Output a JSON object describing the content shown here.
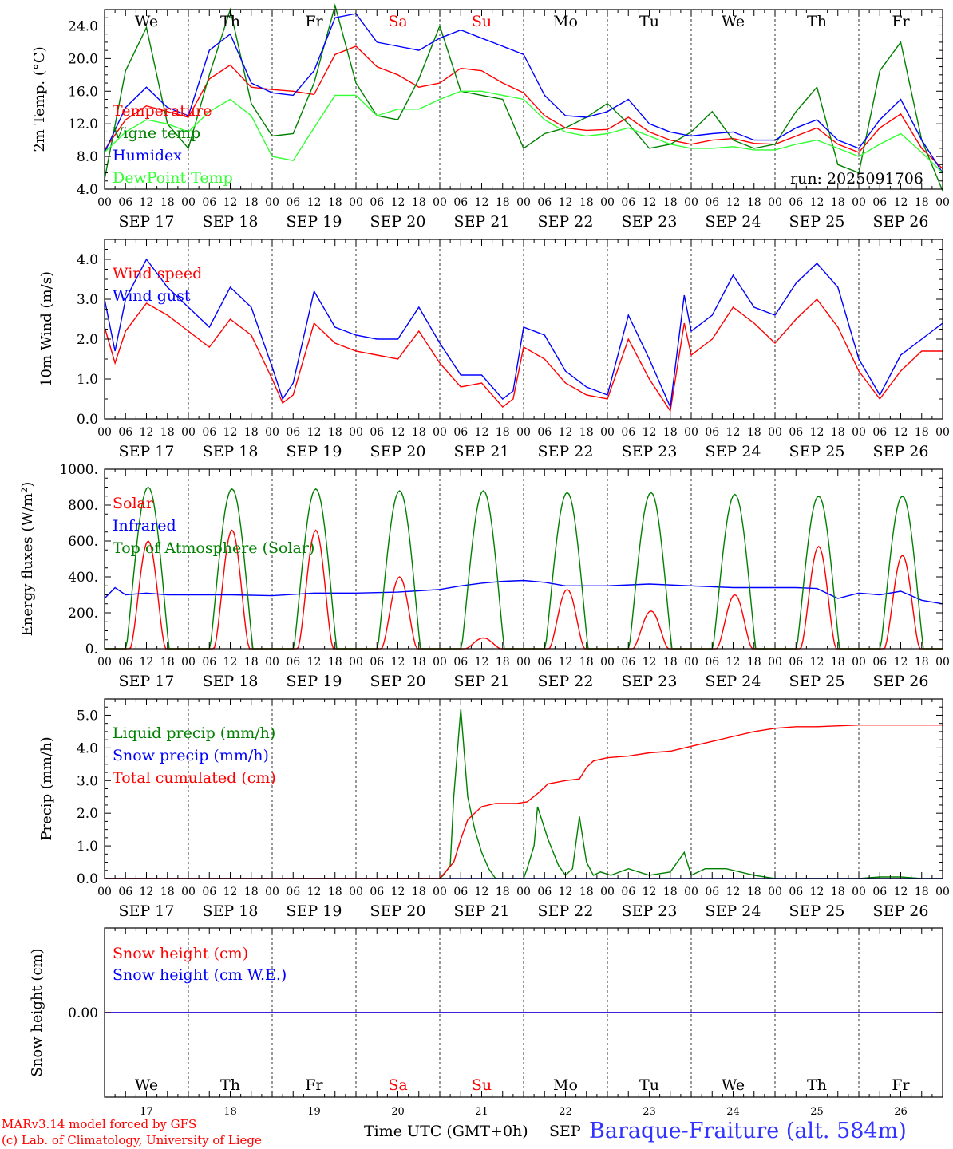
{
  "run_label": "run: 2025091706",
  "footer": {
    "model": "MARv3.14 model forced by GFS",
    "lab": "(c) Lab. of Climatology, University of Liege",
    "axis_title": "Time UTC (GMT+0h)",
    "month": "SEP",
    "station": "Baraque-Fraiture (alt. 584m)"
  },
  "colors": {
    "red": "#ff0000",
    "blue": "#0000ff",
    "dkgreen": "#008000",
    "ltgreen": "#33ff33"
  },
  "days": {
    "weekday_labels": [
      "We",
      "Th",
      "Fr",
      "Sa",
      "Su",
      "Mo",
      "Tu",
      "We",
      "Th",
      "Fr"
    ],
    "weekend": [
      false,
      false,
      false,
      true,
      true,
      false,
      false,
      false,
      false,
      false
    ],
    "date_labels": [
      "SEP 17",
      "SEP 18",
      "SEP 19",
      "SEP 20",
      "SEP 21",
      "SEP 22",
      "SEP 23",
      "SEP 24",
      "SEP 25",
      "SEP 26"
    ],
    "day_numbers": [
      "17",
      "18",
      "19",
      "20",
      "21",
      "22",
      "23",
      "24",
      "25",
      "26"
    ],
    "hour_ticks": [
      "00",
      "06",
      "12",
      "18"
    ],
    "final_tick": "00"
  },
  "chart_data": [
    {
      "type": "line",
      "ylabel": "2m Temp. (°C)",
      "ylim": [
        4.0,
        26.0
      ],
      "yticks": [
        "4.0",
        "8.0",
        "12.0",
        "16.0",
        "20.0",
        "24.0"
      ],
      "x_unit": "hours since Sep 17 00 UTC",
      "series": [
        {
          "name": "Temperature",
          "color": "#ff0000",
          "x": [
            0,
            6,
            12,
            18,
            24,
            30,
            36,
            42,
            48,
            54,
            60,
            66,
            72,
            78,
            84,
            90,
            96,
            102,
            108,
            114,
            120,
            126,
            132,
            138,
            144,
            150,
            156,
            162,
            168,
            174,
            180,
            186,
            192,
            198,
            204,
            210,
            216,
            222,
            228,
            234,
            240
          ],
          "y": [
            8.8,
            12.5,
            14.2,
            13.5,
            12.8,
            17.5,
            19.2,
            16.5,
            16.2,
            16.0,
            15.6,
            20.5,
            21.5,
            19.0,
            18.0,
            16.5,
            17.0,
            18.8,
            18.5,
            17.0,
            15.8,
            13.0,
            11.5,
            11.2,
            11.3,
            12.8,
            11.0,
            10.0,
            9.5,
            10.0,
            10.2,
            9.6,
            9.5,
            10.5,
            11.5,
            9.5,
            8.5,
            11.5,
            13.2,
            9.0,
            6.5
          ]
        },
        {
          "name": "Vigne temp",
          "color": "#008000",
          "x": [
            0,
            6,
            12,
            18,
            24,
            30,
            36,
            42,
            48,
            54,
            60,
            66,
            72,
            78,
            84,
            90,
            96,
            102,
            108,
            114,
            120,
            126,
            132,
            138,
            144,
            150,
            156,
            162,
            168,
            174,
            180,
            186,
            192,
            198,
            204,
            210,
            216,
            222,
            228,
            234,
            240
          ],
          "y": [
            5.2,
            18.5,
            23.8,
            12.0,
            9.0,
            18.0,
            26.0,
            14.5,
            10.5,
            10.8,
            17.0,
            26.5,
            17.0,
            13.0,
            12.5,
            17.5,
            24.0,
            16.0,
            15.5,
            15.0,
            9.0,
            10.8,
            11.5,
            12.8,
            14.5,
            12.0,
            9.0,
            9.5,
            11.0,
            13.5,
            10.0,
            9.0,
            9.5,
            13.5,
            16.5,
            7.0,
            6.0,
            18.5,
            22.0,
            10.0,
            3.8
          ]
        },
        {
          "name": "Humidex",
          "color": "#0000ff",
          "x": [
            0,
            6,
            12,
            18,
            24,
            30,
            36,
            42,
            48,
            54,
            60,
            66,
            72,
            78,
            84,
            90,
            96,
            102,
            108,
            114,
            120,
            126,
            132,
            138,
            144,
            150,
            156,
            162,
            168,
            174,
            180,
            186,
            192,
            198,
            204,
            210,
            216,
            222,
            228,
            234,
            240
          ],
          "y": [
            8.5,
            14.0,
            16.5,
            14.0,
            13.0,
            21.0,
            23.0,
            17.0,
            15.8,
            15.5,
            18.5,
            25.0,
            25.5,
            22.0,
            21.5,
            21.0,
            22.5,
            23.5,
            22.5,
            21.5,
            20.5,
            15.5,
            13.0,
            12.8,
            13.5,
            15.0,
            12.0,
            11.0,
            10.5,
            10.8,
            11.0,
            10.0,
            10.0,
            11.5,
            12.5,
            10.0,
            9.0,
            12.5,
            15.0,
            10.0,
            6.0
          ]
        },
        {
          "name": "DewPoint Temp",
          "color": "#33ff33",
          "x": [
            0,
            6,
            12,
            18,
            24,
            30,
            36,
            42,
            48,
            54,
            60,
            66,
            72,
            78,
            84,
            90,
            96,
            102,
            108,
            114,
            120,
            126,
            132,
            138,
            144,
            150,
            156,
            162,
            168,
            174,
            180,
            186,
            192,
            198,
            204,
            210,
            216,
            222,
            228,
            234,
            240
          ],
          "y": [
            8.5,
            11.0,
            12.5,
            12.0,
            11.0,
            13.5,
            15.0,
            13.0,
            8.0,
            7.5,
            11.5,
            15.5,
            15.5,
            13.0,
            13.8,
            13.8,
            15.0,
            16.0,
            16.0,
            15.5,
            15.0,
            12.5,
            11.0,
            10.5,
            10.8,
            11.5,
            10.5,
            9.5,
            9.0,
            9.0,
            9.2,
            8.8,
            8.8,
            9.5,
            10.0,
            9.0,
            8.0,
            9.5,
            10.8,
            8.5,
            6.0
          ]
        }
      ]
    },
    {
      "type": "line",
      "ylabel": "10m Wind (m/s)",
      "ylim": [
        0.0,
        4.5
      ],
      "yticks": [
        "0.0",
        "1.0",
        "2.0",
        "3.0",
        "4.0"
      ],
      "series": [
        {
          "name": "Wind speed",
          "color": "#ff0000",
          "x": [
            0,
            3,
            6,
            12,
            18,
            24,
            30,
            36,
            42,
            48,
            51,
            54,
            60,
            66,
            72,
            78,
            84,
            90,
            96,
            102,
            108,
            114,
            117,
            120,
            126,
            132,
            138,
            144,
            150,
            156,
            162,
            166,
            168,
            174,
            180,
            186,
            192,
            198,
            204,
            210,
            216,
            222,
            228,
            234,
            240
          ],
          "y": [
            2.3,
            1.4,
            2.2,
            2.9,
            2.6,
            2.2,
            1.8,
            2.5,
            2.1,
            1.0,
            0.4,
            0.6,
            2.4,
            1.9,
            1.7,
            1.6,
            1.5,
            2.2,
            1.4,
            0.8,
            0.9,
            0.3,
            0.5,
            1.8,
            1.5,
            0.9,
            0.6,
            0.5,
            2.0,
            1.0,
            0.2,
            2.4,
            1.6,
            2.0,
            2.8,
            2.4,
            1.9,
            2.5,
            3.0,
            2.3,
            1.2,
            0.5,
            1.2,
            1.7,
            1.7
          ]
        },
        {
          "name": "Wind gust",
          "color": "#0000ff",
          "x": [
            0,
            3,
            6,
            12,
            18,
            24,
            30,
            36,
            42,
            48,
            51,
            54,
            60,
            66,
            72,
            78,
            84,
            90,
            96,
            102,
            108,
            114,
            117,
            120,
            126,
            132,
            138,
            144,
            150,
            156,
            162,
            166,
            168,
            174,
            180,
            186,
            192,
            198,
            204,
            210,
            216,
            222,
            228,
            234,
            240
          ],
          "y": [
            3.0,
            1.7,
            3.0,
            4.0,
            3.3,
            2.8,
            2.3,
            3.3,
            2.8,
            1.3,
            0.5,
            0.9,
            3.2,
            2.3,
            2.1,
            2.0,
            2.0,
            2.8,
            1.9,
            1.1,
            1.1,
            0.5,
            0.7,
            2.3,
            2.1,
            1.2,
            0.8,
            0.6,
            2.6,
            1.5,
            0.3,
            3.1,
            2.2,
            2.6,
            3.6,
            2.8,
            2.6,
            3.4,
            3.9,
            3.3,
            1.5,
            0.6,
            1.6,
            2.0,
            2.4
          ]
        }
      ]
    },
    {
      "type": "line",
      "ylabel": "Energy fluxes (W/m²)",
      "ylim": [
        0,
        1000
      ],
      "yticks": [
        "0.",
        "200.",
        "400.",
        "600.",
        "800.",
        "1000."
      ],
      "series": [
        {
          "name": "Solar",
          "color": "#ff0000",
          "diurnal": true,
          "peaks": [
            600,
            660,
            660,
            400,
            60,
            330,
            210,
            300,
            570,
            520
          ]
        },
        {
          "name": "Infrared",
          "color": "#0000ff",
          "x": [
            0,
            3,
            6,
            12,
            18,
            24,
            36,
            48,
            60,
            72,
            84,
            96,
            102,
            108,
            114,
            120,
            126,
            132,
            144,
            156,
            168,
            180,
            192,
            198,
            204,
            210,
            216,
            222,
            228,
            234,
            240
          ],
          "y": [
            280,
            340,
            300,
            310,
            300,
            300,
            300,
            295,
            310,
            310,
            315,
            330,
            350,
            365,
            375,
            380,
            370,
            350,
            350,
            360,
            350,
            340,
            340,
            340,
            335,
            280,
            310,
            300,
            320,
            270,
            250
          ]
        },
        {
          "name": "Top of Atmosphere (Solar)",
          "color": "#008000",
          "diurnal": true,
          "peaks": [
            900,
            890,
            890,
            880,
            880,
            870,
            870,
            860,
            850,
            850
          ]
        }
      ]
    },
    {
      "type": "line",
      "ylabel": "Precip (mm/h)",
      "ylim": [
        0.0,
        5.5
      ],
      "yticks": [
        "0.0",
        "1.0",
        "2.0",
        "3.0",
        "4.0",
        "5.0"
      ],
      "series": [
        {
          "name": "Liquid precip (mm/h)",
          "color": "#008000",
          "x": [
            0,
            96,
            97,
            99,
            100,
            102,
            104,
            106,
            108,
            110,
            112,
            120,
            121,
            123,
            124,
            127,
            130,
            132,
            134,
            136,
            138,
            140,
            142,
            145,
            150,
            156,
            162,
            166,
            168,
            172,
            178,
            186,
            192,
            204,
            210,
            216,
            222,
            228,
            234,
            240
          ],
          "y": [
            0,
            0,
            0.1,
            0.4,
            2.5,
            5.2,
            2.5,
            1.5,
            0.8,
            0.3,
            0.0,
            0.0,
            0.3,
            1.0,
            2.2,
            1.2,
            0.4,
            0.1,
            0.3,
            1.9,
            0.5,
            0.1,
            0.2,
            0.1,
            0.3,
            0.1,
            0.2,
            0.8,
            0.1,
            0.3,
            0.3,
            0.1,
            0.0,
            0.0,
            0.0,
            0.0,
            0.05,
            0.05,
            0.0,
            0.0
          ]
        },
        {
          "name": "Snow precip (mm/h)",
          "color": "#0000ff",
          "x": [
            0,
            240
          ],
          "y": [
            0,
            0
          ]
        },
        {
          "name": "Total cumulated (cm)",
          "color": "#ff0000",
          "x": [
            0,
            96,
            100,
            102,
            104,
            108,
            112,
            118,
            121,
            124,
            127,
            132,
            136,
            138,
            140,
            144,
            150,
            156,
            162,
            168,
            174,
            180,
            186,
            192,
            198,
            204,
            216,
            240
          ],
          "y": [
            0,
            0,
            0.5,
            1.2,
            1.8,
            2.2,
            2.3,
            2.3,
            2.35,
            2.6,
            2.9,
            3.0,
            3.05,
            3.4,
            3.6,
            3.7,
            3.75,
            3.85,
            3.9,
            4.05,
            4.2,
            4.35,
            4.5,
            4.6,
            4.65,
            4.65,
            4.7,
            4.7
          ]
        }
      ]
    },
    {
      "type": "line",
      "ylabel": "Snow height (cm)",
      "yticks": [
        "0.00"
      ],
      "series": [
        {
          "name": "Snow height (cm)",
          "color": "#ff0000",
          "x": [
            0,
            240
          ],
          "y": [
            0,
            0
          ]
        },
        {
          "name": "Snow height (cm W.E.)",
          "color": "#0000ff",
          "x": [
            0,
            240
          ],
          "y": [
            0,
            0
          ]
        }
      ]
    }
  ]
}
